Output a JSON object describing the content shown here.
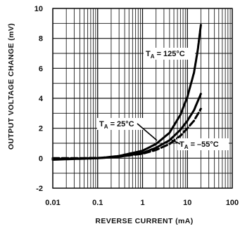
{
  "chart_data": {
    "type": "line",
    "title": "",
    "xlabel": "REVERSE CURRENT (mA)",
    "ylabel": "OUTPUT VOLTAGE CHANGE (mV)",
    "xscale": "log",
    "xlim": [
      0.01,
      100
    ],
    "ylim": [
      -2,
      10
    ],
    "xticks": [
      0.01,
      0.1,
      1,
      10,
      100
    ],
    "xtick_labels": [
      "0.01",
      "0.1",
      "1",
      "10",
      "100"
    ],
    "yticks": [
      -2,
      0,
      2,
      4,
      6,
      8,
      10
    ],
    "ytick_labels": [
      "-2",
      "0",
      "2",
      "4",
      "6",
      "8",
      "10"
    ],
    "grid": true,
    "series": [
      {
        "name": "T_A = 125°C",
        "style": "solid",
        "x": [
          0.01,
          0.03,
          0.1,
          0.3,
          1,
          2,
          4,
          7,
          10,
          14,
          17,
          20
        ],
        "y": [
          -0.1,
          -0.05,
          0.0,
          0.15,
          0.5,
          0.95,
          1.7,
          2.9,
          4.1,
          5.7,
          7.2,
          8.9
        ]
      },
      {
        "name": "T_A = 25°C",
        "style": "solid",
        "x": [
          0.01,
          0.03,
          0.1,
          0.3,
          1,
          2,
          4,
          7,
          10,
          14,
          20
        ],
        "y": [
          -0.05,
          -0.02,
          0.0,
          0.1,
          0.35,
          0.7,
          1.2,
          1.9,
          2.5,
          3.2,
          4.3
        ]
      },
      {
        "name": "T_A = -55°C",
        "style": "dashed",
        "x": [
          0.01,
          0.03,
          0.1,
          0.3,
          1,
          2,
          4,
          7,
          10,
          14,
          20
        ],
        "y": [
          0.0,
          0.0,
          0.02,
          0.1,
          0.3,
          0.55,
          0.95,
          1.5,
          2.0,
          2.5,
          3.3
        ]
      }
    ],
    "annotations": [
      {
        "label": "T",
        "sub": "A",
        "rest": " = 125°C",
        "series": 0
      },
      {
        "label": "T",
        "sub": "A",
        "rest": " = 25°C",
        "series": 1
      },
      {
        "label": "T",
        "sub": "A",
        "rest": " = –55°C",
        "series": 2
      }
    ]
  }
}
